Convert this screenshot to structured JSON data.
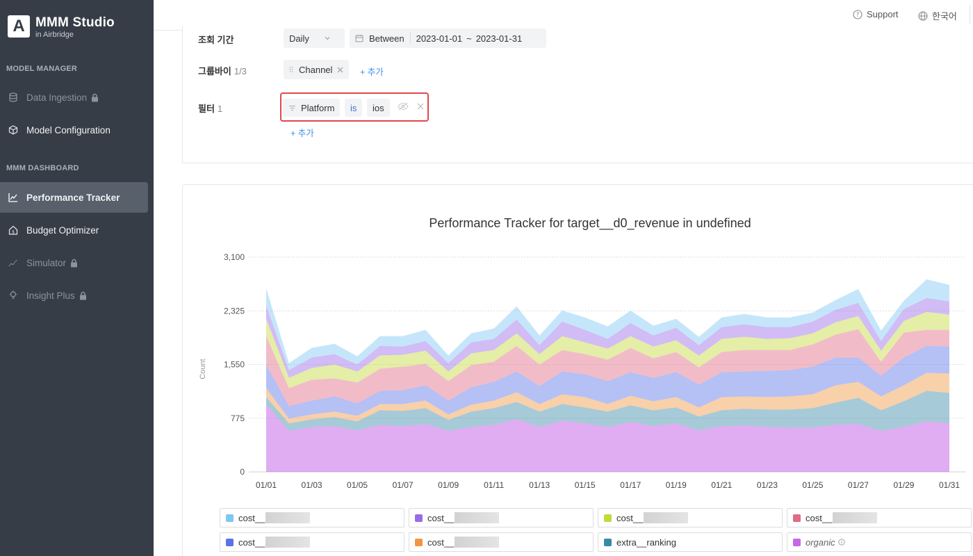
{
  "sidebar": {
    "logo_mark": "A",
    "logo_title": "MMM Studio",
    "logo_sub": "in Airbridge",
    "section_model": "MODEL MANAGER",
    "section_dashboard": "MMM DASHBOARD",
    "items": [
      {
        "label": "Data Ingestion",
        "icon": "database-icon",
        "locked": true,
        "state": "disabled"
      },
      {
        "label": "Model Configuration",
        "icon": "cube-icon",
        "locked": false,
        "state": "normal"
      },
      {
        "label": "Performance Tracker",
        "icon": "line-chart-icon",
        "locked": false,
        "state": "active"
      },
      {
        "label": "Budget Optimizer",
        "icon": "home-dollar-icon",
        "locked": false,
        "state": "normal"
      },
      {
        "label": "Simulator",
        "icon": "trend-icon",
        "locked": true,
        "state": "disabled"
      },
      {
        "label": "Insight Plus",
        "icon": "bulb-icon",
        "locked": true,
        "state": "disabled"
      }
    ]
  },
  "topbar": {
    "support": "Support",
    "language": "한국어"
  },
  "filters": {
    "period_label": "조회 기간",
    "granularity": "Daily",
    "range_mode": "Between",
    "start_date": "2023-01-01",
    "range_sep": "~",
    "end_date": "2023-01-31",
    "groupby_label": "그룹바이",
    "groupby_count": "1/3",
    "groupby_chip": "Channel",
    "add": "+ 추가",
    "filter_label": "필터",
    "filter_count": "1",
    "filter_field": "Platform",
    "filter_op": "is",
    "filter_value": "ios"
  },
  "chart_data": {
    "type": "area",
    "title": "Performance Tracker for target__d0_revenue in undefined",
    "ylabel": "Count",
    "ylim": [
      0,
      3100
    ],
    "yticks": [
      "0",
      "775",
      "1,550",
      "2,325",
      "3,100"
    ],
    "x": [
      "01/01",
      "01/02",
      "01/03",
      "01/04",
      "01/05",
      "01/06",
      "01/07",
      "01/08",
      "01/09",
      "01/10",
      "01/11",
      "01/12",
      "01/13",
      "01/14",
      "01/15",
      "01/16",
      "01/17",
      "01/18",
      "01/19",
      "01/20",
      "01/21",
      "01/22",
      "01/23",
      "01/24",
      "01/25",
      "01/26",
      "01/27",
      "01/28",
      "01/29",
      "01/30",
      "01/31"
    ],
    "xtick_labels": [
      "01/01",
      "01/03",
      "01/05",
      "01/07",
      "01/09",
      "01/11",
      "01/13",
      "01/15",
      "01/17",
      "01/19",
      "01/21",
      "01/23",
      "01/25",
      "01/27",
      "01/29",
      "01/31"
    ],
    "stacked": true,
    "grid": true,
    "legend_position": "bottom",
    "series": [
      {
        "name": "organic",
        "color": "#c667e8",
        "values": [
          980,
          590,
          650,
          660,
          600,
          680,
          660,
          690,
          590,
          650,
          680,
          760,
          650,
          740,
          700,
          650,
          720,
          660,
          700,
          600,
          660,
          670,
          650,
          640,
          640,
          680,
          690,
          590,
          650,
          730,
          700
        ]
      },
      {
        "name": "extra__ranking",
        "color": "#3a8aa6",
        "values": [
          100,
          110,
          110,
          130,
          130,
          210,
          220,
          230,
          160,
          220,
          240,
          250,
          220,
          240,
          230,
          220,
          240,
          230,
          230,
          200,
          230,
          240,
          250,
          260,
          280,
          320,
          380,
          300,
          370,
          440,
          440
        ]
      },
      {
        "name": "cost__",
        "color": "#f09642",
        "values": [
          130,
          70,
          70,
          80,
          80,
          90,
          100,
          110,
          80,
          100,
          110,
          140,
          110,
          140,
          150,
          110,
          140,
          130,
          150,
          130,
          190,
          180,
          180,
          190,
          200,
          250,
          230,
          200,
          230,
          260,
          280
        ]
      },
      {
        "name": "cost__",
        "color": "#5b73e8",
        "values": [
          340,
          180,
          200,
          220,
          180,
          190,
          200,
          220,
          200,
          250,
          270,
          300,
          260,
          330,
          330,
          330,
          340,
          340,
          360,
          330,
          360,
          360,
          380,
          380,
          400,
          400,
          350,
          300,
          400,
          390,
          390
        ]
      },
      {
        "name": "cost__",
        "color": "#e06b86",
        "values": [
          410,
          260,
          300,
          260,
          300,
          320,
          340,
          310,
          280,
          320,
          290,
          370,
          310,
          310,
          290,
          310,
          350,
          280,
          290,
          250,
          290,
          310,
          300,
          290,
          320,
          330,
          410,
          200,
          360,
          230,
          240
        ]
      },
      {
        "name": "cost__",
        "color": "#c4d93a",
        "values": [
          250,
          150,
          170,
          200,
          160,
          190,
          170,
          190,
          140,
          170,
          170,
          180,
          150,
          200,
          170,
          160,
          170,
          170,
          170,
          170,
          190,
          190,
          160,
          170,
          160,
          180,
          190,
          160,
          170,
          260,
          220
        ]
      },
      {
        "name": "cost__",
        "color": "#9a6be8",
        "values": [
          190,
          110,
          150,
          150,
          100,
          140,
          120,
          140,
          120,
          160,
          160,
          200,
          130,
          210,
          180,
          140,
          190,
          160,
          180,
          150,
          170,
          180,
          170,
          160,
          170,
          180,
          190,
          140,
          170,
          200,
          190
        ]
      },
      {
        "name": "cost__",
        "color": "#7fc7f5",
        "values": [
          250,
          100,
          140,
          150,
          120,
          140,
          150,
          160,
          110,
          130,
          150,
          190,
          140,
          160,
          180,
          180,
          180,
          140,
          130,
          120,
          140,
          150,
          140,
          140,
          130,
          140,
          200,
          150,
          120,
          270,
          240
        ]
      }
    ],
    "legend": [
      {
        "name": "cost__",
        "color": "#7fc7f5"
      },
      {
        "name": "cost__",
        "color": "#9a6be8"
      },
      {
        "name": "cost__",
        "color": "#c4d93a"
      },
      {
        "name": "cost__",
        "color": "#e06b86"
      },
      {
        "name": "cost__",
        "color": "#5b73e8"
      },
      {
        "name": "cost__",
        "color": "#f09642"
      },
      {
        "name": "extra__ranking",
        "color": "#3a8aa6"
      },
      {
        "name": "organic",
        "color": "#c667e8"
      }
    ]
  }
}
